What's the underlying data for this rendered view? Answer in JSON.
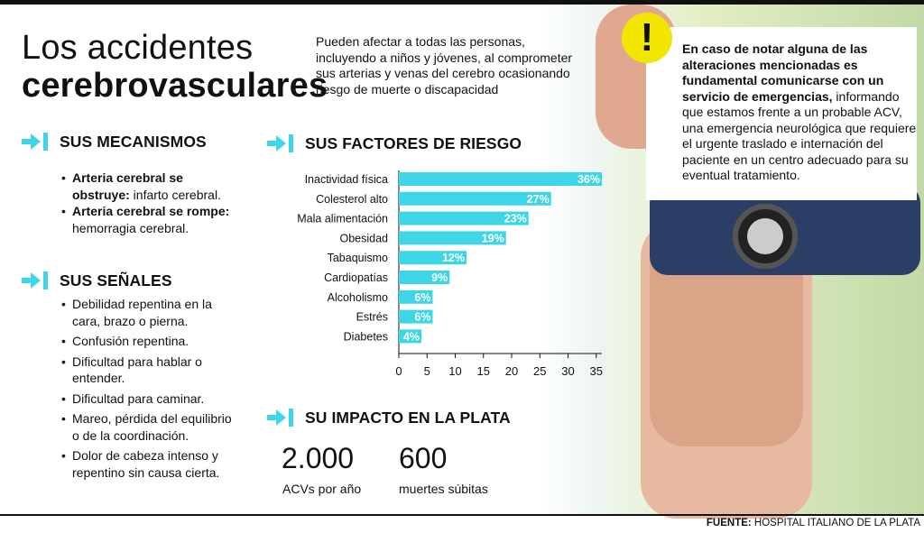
{
  "title": {
    "light": "Los accidentes",
    "bold": "cerebrovasculares"
  },
  "intro": "Pueden afectar a todas las personas, incluyendo a niños y jóvenes, al comprometer sus arterias y venas del cerebro ocasionando riesgo de muerte o discapacidad",
  "alert": {
    "bold": "En caso de notar alguna de las alteraciones mencionadas es fundamental comunicarse con un servicio de emergencias,",
    "rest": " informando que estamos frente a un probable ACV, una emergencia neurológica que requiere el urgente traslado e internación del paciente en un centro adecuado para su eventual tratamiento.",
    "badge": "!"
  },
  "mecanismos": {
    "heading": "SUS MECANISMOS",
    "items": [
      {
        "bold": "Arteria cerebral se obstruye:",
        "text": " infarto cerebral."
      },
      {
        "bold": "Arteria cerebral se rompe:",
        "text": " hemorragia cerebral."
      }
    ]
  },
  "senales": {
    "heading": "SUS SEÑALES",
    "items": [
      "Debilidad repentina en la cara, brazo o pierna.",
      "Confusión repentina.",
      "Dificultad para hablar o entender.",
      "Dificultad para caminar.",
      "Mareo, pérdida del equilibrio o de la coordinación.",
      "Dolor de cabeza intenso y repentino sin causa cierta."
    ]
  },
  "factores": {
    "heading": "SUS FACTORES DE RIESGO"
  },
  "impacto": {
    "heading": "SU IMPACTO EN LA PLATA",
    "stats": [
      {
        "value": "2.000",
        "label": "ACVs por año"
      },
      {
        "value": "600",
        "label": "muertes súbitas"
      }
    ]
  },
  "source": {
    "bold": "FUENTE:",
    "text": " HOSPITAL ITALIANO DE LA PLATA"
  },
  "colors": {
    "accent": "#3ed6e6",
    "badge": "#f2e600"
  },
  "icons": {
    "section": "arrow-right-to-bar-icon",
    "alert": "exclamation-icon"
  },
  "chart_data": {
    "type": "bar",
    "orientation": "horizontal",
    "categories": [
      "Inactividad física",
      "Colesterol alto",
      "Mala alimentación",
      "Obesidad",
      "Tabaquismo",
      "Cardiopatías",
      "Alcoholismo",
      "Estrés",
      "Diabetes"
    ],
    "values": [
      36,
      27,
      23,
      19,
      12,
      9,
      6,
      6,
      4
    ],
    "value_labels": [
      "36%",
      "27%",
      "23%",
      "19%",
      "12%",
      "9%",
      "6%",
      "6%",
      "4%"
    ],
    "xticks": [
      0,
      5,
      10,
      15,
      20,
      25,
      30,
      35
    ],
    "xlim": [
      0,
      36
    ],
    "title": "",
    "xlabel": "",
    "ylabel": "",
    "grid": false,
    "color": "#3ed6e6"
  }
}
